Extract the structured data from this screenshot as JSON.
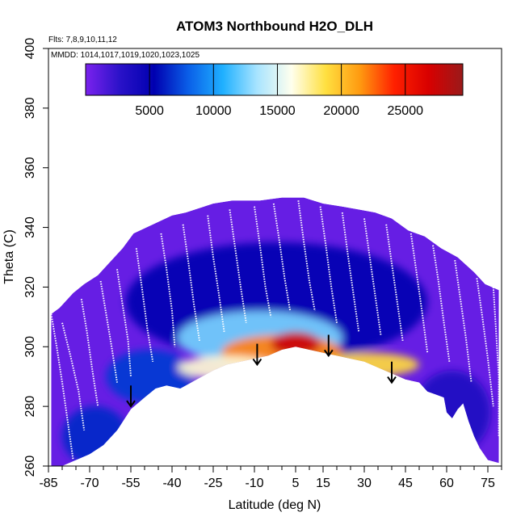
{
  "chart_data": {
    "type": "heatmap",
    "title": "ATOM3 Northbound H2O_DLH",
    "subtitle_flights": "Flts: 7,8,9,10,11,12",
    "subtitle_dates": "MMDD: 1014,1017,1019,1020,1023,1025",
    "xlabel": "Latitude (deg N)",
    "ylabel": "Theta (C)",
    "xlim": [
      -85,
      80
    ],
    "ylim": [
      260,
      400
    ],
    "x_ticks": [
      -85,
      -70,
      -55,
      -40,
      -25,
      -10,
      5,
      15,
      30,
      45,
      60,
      75
    ],
    "y_ticks": [
      260,
      280,
      300,
      320,
      340,
      360,
      380,
      400
    ],
    "colorbar": {
      "range": [
        0,
        29500
      ],
      "ticks": [
        5000,
        10000,
        15000,
        20000,
        25000
      ],
      "colors": [
        "#7b22ee",
        "#2a12c8",
        "#0000b0",
        "#0a5fe8",
        "#1fb0ff",
        "#a8e4ff",
        "#ffffee",
        "#ffe040",
        "#ff9a10",
        "#ff2000",
        "#d80000",
        "#9a1a1a"
      ]
    },
    "top_boundary": [
      [
        -84,
        311
      ],
      [
        -81,
        313
      ],
      [
        -76,
        318
      ],
      [
        -72,
        321
      ],
      [
        -67,
        324
      ],
      [
        -63,
        328
      ],
      [
        -58,
        333
      ],
      [
        -54,
        338
      ],
      [
        -47,
        341
      ],
      [
        -40,
        344
      ],
      [
        -35,
        345
      ],
      [
        -25,
        348
      ],
      [
        -18,
        349
      ],
      [
        -8,
        349
      ],
      [
        0,
        350
      ],
      [
        8,
        350
      ],
      [
        15,
        348
      ],
      [
        22,
        347
      ],
      [
        28,
        346
      ],
      [
        34,
        345
      ],
      [
        40,
        343
      ],
      [
        46,
        339
      ],
      [
        52,
        337
      ],
      [
        58,
        333
      ],
      [
        64,
        330
      ],
      [
        70,
        325
      ],
      [
        74,
        321
      ],
      [
        79,
        319
      ]
    ],
    "bottom_boundary": [
      [
        -84,
        260
      ],
      [
        -80,
        260
      ],
      [
        -75,
        262
      ],
      [
        -70,
        264
      ],
      [
        -65,
        267
      ],
      [
        -60,
        272
      ],
      [
        -55,
        279
      ],
      [
        -50,
        283
      ],
      [
        -46,
        286
      ],
      [
        -42,
        287
      ],
      [
        -37,
        286
      ],
      [
        -31,
        289
      ],
      [
        -25,
        292
      ],
      [
        -20,
        294
      ],
      [
        -15,
        295
      ],
      [
        -10,
        296
      ],
      [
        -5,
        297
      ],
      [
        0,
        299
      ],
      [
        5,
        300
      ],
      [
        10,
        299
      ],
      [
        15,
        298
      ],
      [
        20,
        297
      ],
      [
        25,
        296
      ],
      [
        30,
        295
      ],
      [
        35,
        293
      ],
      [
        40,
        291
      ],
      [
        45,
        289
      ],
      [
        50,
        288
      ],
      [
        53,
        285
      ],
      [
        56,
        284
      ],
      [
        59,
        283
      ],
      [
        60,
        278
      ],
      [
        62,
        276
      ],
      [
        64,
        279
      ],
      [
        66,
        281
      ],
      [
        68,
        275
      ],
      [
        70,
        270
      ],
      [
        72,
        266
      ],
      [
        75,
        262
      ],
      [
        79,
        261
      ]
    ],
    "zones": [
      {
        "cx": 5,
        "cy": 301,
        "rx": 9,
        "ry": 4,
        "value": 27500
      },
      {
        "cx": 0,
        "cy": 298,
        "rx": 22,
        "ry": 6,
        "value": 22000
      },
      {
        "cx": -20,
        "cy": 293,
        "rx": 18,
        "ry": 4,
        "value": 16500
      },
      {
        "cx": 32,
        "cy": 294,
        "rx": 18,
        "ry": 4,
        "value": 19000
      },
      {
        "cx": -8,
        "cy": 303,
        "rx": 30,
        "ry": 9,
        "value": 12500
      },
      {
        "cx": -2,
        "cy": 315,
        "rx": 55,
        "ry": 20,
        "value": 5200
      },
      {
        "cx": -48,
        "cy": 290,
        "rx": 16,
        "ry": 9,
        "value": 7000
      },
      {
        "cx": 62,
        "cy": 278,
        "rx": 14,
        "ry": 14,
        "value": 3500
      },
      {
        "cx": -68,
        "cy": 270,
        "rx": 12,
        "ry": 10,
        "value": 6500
      }
    ],
    "flight_traces": [
      [
        [
          -84,
          311
        ],
        [
          -82,
          300
        ],
        [
          -80,
          288
        ],
        [
          -78,
          275
        ],
        [
          -76,
          262
        ]
      ],
      [
        [
          -80,
          308
        ],
        [
          -77,
          297
        ],
        [
          -74,
          285
        ],
        [
          -72,
          272
        ]
      ],
      [
        [
          -73,
          316
        ],
        [
          -71,
          305
        ],
        [
          -69,
          292
        ],
        [
          -67,
          280
        ]
      ],
      [
        [
          -66,
          322
        ],
        [
          -64,
          311
        ],
        [
          -62,
          300
        ],
        [
          -60,
          288
        ]
      ],
      [
        [
          -60,
          326
        ],
        [
          -58,
          314
        ],
        [
          -56,
          302
        ],
        [
          -55,
          290
        ]
      ],
      [
        [
          -53,
          333
        ],
        [
          -51,
          320
        ],
        [
          -49,
          306
        ],
        [
          -47,
          295
        ]
      ],
      [
        [
          -44,
          338
        ],
        [
          -42,
          326
        ],
        [
          -40,
          312
        ],
        [
          -39,
          300
        ]
      ],
      [
        [
          -36,
          341
        ],
        [
          -34,
          328
        ],
        [
          -32,
          314
        ],
        [
          -30,
          302
        ]
      ],
      [
        [
          -27,
          344
        ],
        [
          -25,
          330
        ],
        [
          -23,
          318
        ],
        [
          -21,
          305
        ]
      ],
      [
        [
          -19,
          346
        ],
        [
          -17,
          333
        ],
        [
          -15,
          320
        ],
        [
          -13,
          308
        ]
      ],
      [
        [
          -10,
          347
        ],
        [
          -8,
          334
        ],
        [
          -6,
          320
        ],
        [
          -4,
          310
        ]
      ],
      [
        [
          -3,
          348
        ],
        [
          -1,
          336
        ],
        [
          1,
          323
        ],
        [
          3,
          312
        ]
      ],
      [
        [
          6,
          349
        ],
        [
          8,
          335
        ],
        [
          10,
          322
        ],
        [
          12,
          312
        ]
      ],
      [
        [
          14,
          347
        ],
        [
          16,
          334
        ],
        [
          18,
          320
        ],
        [
          20,
          308
        ]
      ],
      [
        [
          22,
          345
        ],
        [
          24,
          331
        ],
        [
          26,
          318
        ],
        [
          28,
          305
        ]
      ],
      [
        [
          30,
          343
        ],
        [
          32,
          330
        ],
        [
          34,
          317
        ],
        [
          36,
          304
        ]
      ],
      [
        [
          38,
          341
        ],
        [
          40,
          328
        ],
        [
          42,
          315
        ],
        [
          44,
          302
        ]
      ],
      [
        [
          47,
          338
        ],
        [
          49,
          325
        ],
        [
          51,
          312
        ],
        [
          53,
          298
        ]
      ],
      [
        [
          55,
          334
        ],
        [
          57,
          322
        ],
        [
          59,
          308
        ],
        [
          61,
          295
        ]
      ],
      [
        [
          63,
          329
        ],
        [
          65,
          316
        ],
        [
          67,
          303
        ],
        [
          69,
          288
        ]
      ],
      [
        [
          71,
          323
        ],
        [
          73,
          310
        ],
        [
          75,
          296
        ],
        [
          77,
          280
        ]
      ],
      [
        [
          77,
          320
        ],
        [
          78,
          305
        ],
        [
          79,
          290
        ],
        [
          79,
          270
        ]
      ]
    ],
    "arrows": [
      {
        "lat": -55,
        "from_theta": 287,
        "to_theta": 280
      },
      {
        "lat": -9,
        "from_theta": 301,
        "to_theta": 294
      },
      {
        "lat": 17,
        "from_theta": 304,
        "to_theta": 297
      },
      {
        "lat": 40,
        "from_theta": 295,
        "to_theta": 288
      }
    ]
  }
}
